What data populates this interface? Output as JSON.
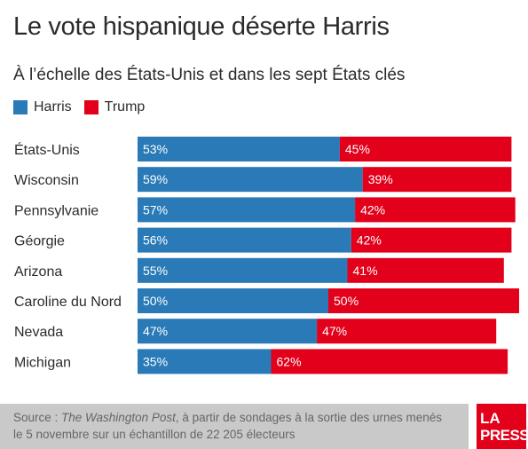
{
  "title": "Le vote hispanique déserte Harris",
  "subtitle": "À l’échelle des États-Unis et dans les sept États clés",
  "legend": [
    {
      "label": "Harris",
      "color": "#2a7ab8"
    },
    {
      "label": "Trump",
      "color": "#e2001a"
    }
  ],
  "footer": {
    "prefix": "Source : ",
    "source_title": "The Washington Post",
    "line1_rest": ", à partir de sondages à la sortie des urnes menés",
    "line2": "le 5 novembre sur un échantillon de 22 205 électeurs"
  },
  "logo": {
    "line1": "LA",
    "line2": "PRESSE",
    "color": "#e2001a"
  },
  "chart_data": {
    "type": "bar",
    "orientation": "horizontal",
    "stacked": true,
    "categories": [
      "États-Unis",
      "Wisconsin",
      "Pennsylvanie",
      "Géorgie",
      "Arizona",
      "Caroline du Nord",
      "Nevada",
      "Michigan"
    ],
    "series": [
      {
        "name": "Harris",
        "color": "#2a7ab8",
        "values": [
          53,
          59,
          57,
          56,
          55,
          50,
          47,
          35
        ],
        "labels": [
          "53%",
          "59%",
          "57%",
          "56%",
          "55%",
          "50%",
          "47%",
          "35%"
        ]
      },
      {
        "name": "Trump",
        "color": "#e2001a",
        "values": [
          45,
          39,
          42,
          42,
          41,
          50,
          47,
          62
        ],
        "labels": [
          "45%",
          "39%",
          "42%",
          "42%",
          "41%",
          "50%",
          "47%",
          "62%"
        ]
      }
    ],
    "unit": "%",
    "xlim": [
      0,
      100
    ],
    "grid": false,
    "legend_position": "top-left"
  }
}
